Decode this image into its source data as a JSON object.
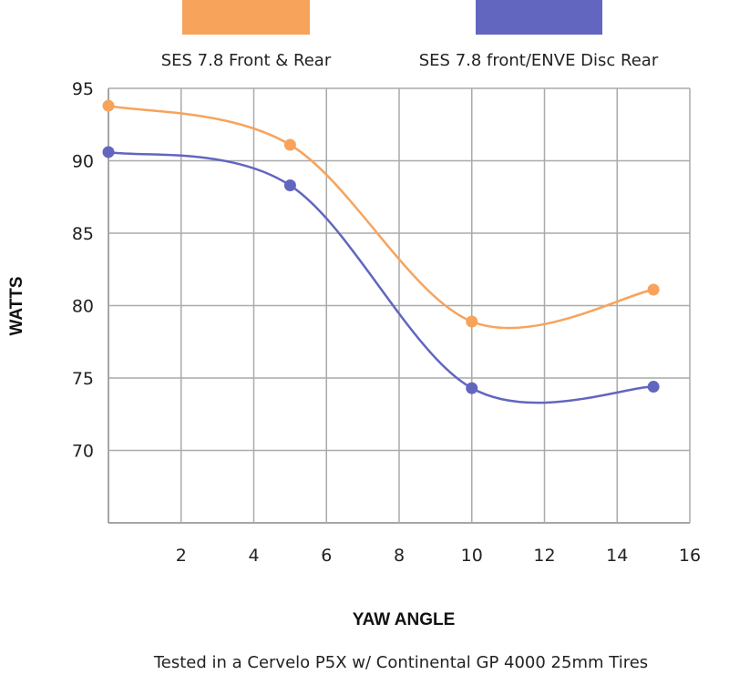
{
  "chart_data": {
    "type": "line",
    "title": "",
    "xlabel": "YAW ANGLE",
    "ylabel": "WATTS",
    "footnote": "Tested in a Cervelo P5X w/ Continental GP 4000 25mm Tires",
    "xlim": [
      0,
      16
    ],
    "ylim": [
      65,
      95
    ],
    "x_ticks": [
      2,
      4,
      6,
      8,
      10,
      12,
      14,
      16
    ],
    "y_ticks": [
      70,
      75,
      80,
      85,
      90,
      95
    ],
    "grid": true,
    "legend_position": "top",
    "x": [
      0,
      5,
      10,
      15
    ],
    "series": [
      {
        "name": "SES 7.8 Front & Rear",
        "color": "#f7a35c",
        "values": [
          93.8,
          91.1,
          78.9,
          81.1
        ]
      },
      {
        "name": "SES 7.8 front/ENVE Disc Rear",
        "color": "#6266bf",
        "values": [
          90.6,
          88.3,
          74.3,
          74.4
        ]
      }
    ]
  }
}
